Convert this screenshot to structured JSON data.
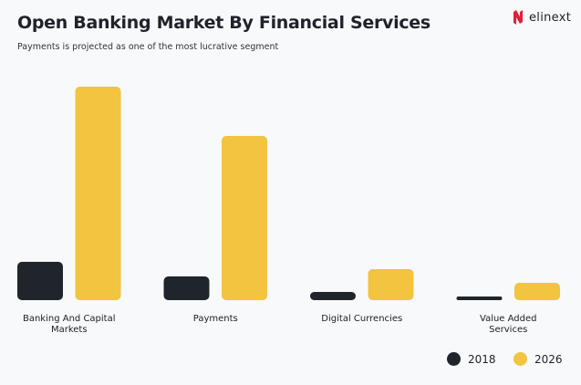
{
  "logo": {
    "text": "elinext",
    "color": "#e0203a"
  },
  "chart_data": {
    "type": "bar",
    "title": "Open Banking Market By Financial Services",
    "subtitle": "Payments is projected as one of the most lucrative segment",
    "categories": [
      "Banking And Capital Markets",
      "Payments",
      "Digital Currencies",
      "Value Added Services"
    ],
    "series": [
      {
        "name": "2018",
        "color": "#1f252b",
        "values": [
          42,
          26,
          9,
          4
        ]
      },
      {
        "name": "2026",
        "color": "#f2c43f",
        "values": [
          234,
          180,
          34,
          19
        ]
      }
    ],
    "ylim": [
      0,
      240
    ],
    "grid": false,
    "axes_visible": false,
    "legend": "bottom-right"
  }
}
